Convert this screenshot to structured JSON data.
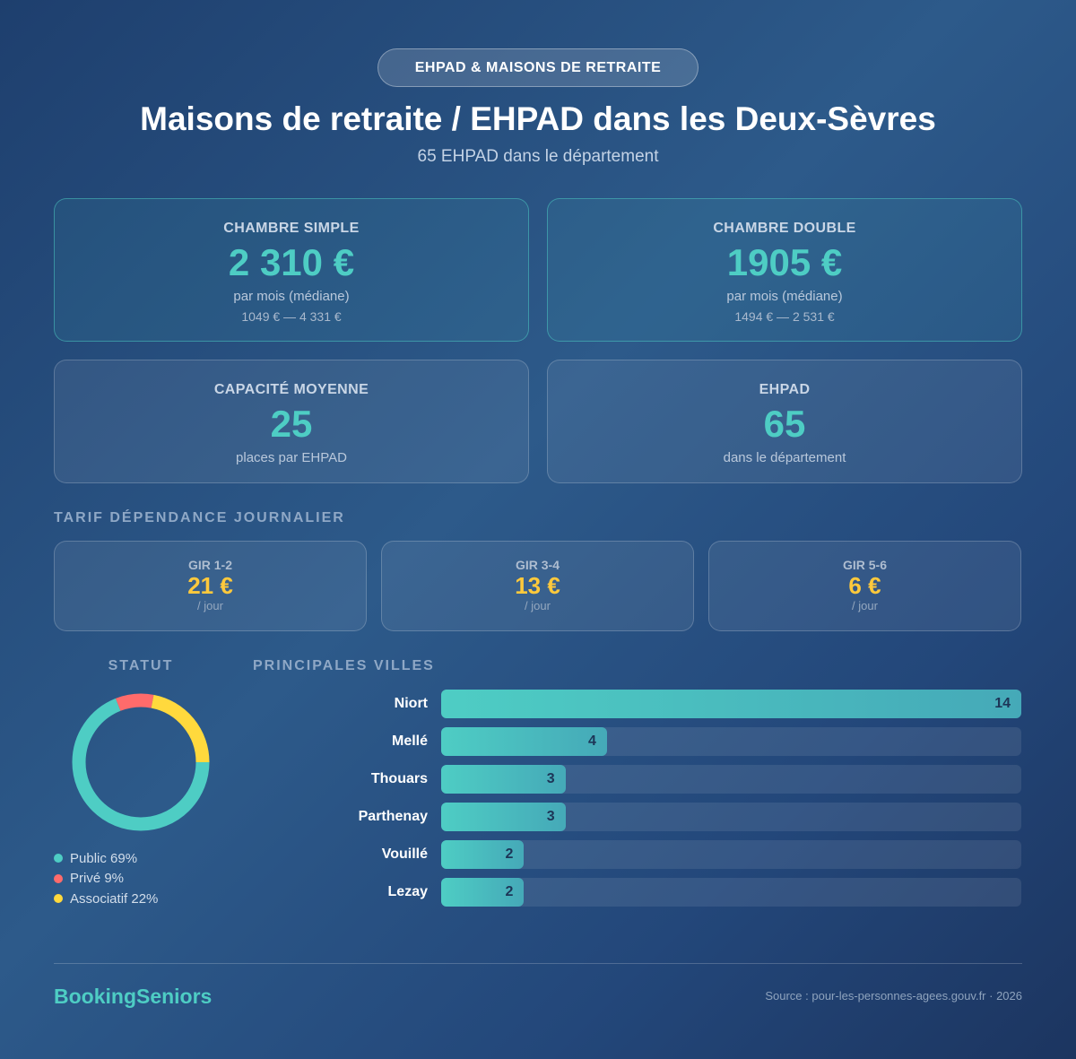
{
  "badge": "EHPAD & MAISONS DE RETRAITE",
  "title": "Maisons de retraite / EHPAD dans les Deux-Sèvres",
  "subtitle": "65 EHPAD dans le département",
  "price_cards": [
    {
      "label": "CHAMBRE SIMPLE",
      "value": "2 310 €",
      "note": "par mois (médiane)",
      "range": "1049 € — 4 331 €"
    },
    {
      "label": "CHAMBRE DOUBLE",
      "value": "1905 €",
      "note": "par mois (médiane)",
      "range": "1494 € — 2 531 €"
    }
  ],
  "info_cards": [
    {
      "label": "CAPACITÉ MOYENNE",
      "value": "25",
      "note": "places par EHPAD"
    },
    {
      "label": "EHPAD",
      "value": "65",
      "note": "dans le département"
    }
  ],
  "tarif": {
    "title": "TARIF DÉPENDANCE JOURNALIER",
    "items": [
      {
        "label": "GIR 1-2",
        "value": "21 €",
        "unit": "/ jour"
      },
      {
        "label": "GIR 3-4",
        "value": "13 €",
        "unit": "/ jour"
      },
      {
        "label": "GIR 5-6",
        "value": "6 €",
        "unit": "/ jour"
      }
    ]
  },
  "statut": {
    "title": "STATUT",
    "slices": [
      {
        "label": "Public 69%",
        "value": 69,
        "color": "#4ecdc4"
      },
      {
        "label": "Privé 9%",
        "value": 9,
        "color": "#ff6b6b"
      },
      {
        "label": "Associatif 22%",
        "value": 22,
        "color": "#ffd93d"
      }
    ]
  },
  "villes": {
    "title": "PRINCIPALES VILLES",
    "categories": [
      "Niort",
      "Mellé",
      "Thouars",
      "Parthenay",
      "Vouillé",
      "Lezay"
    ],
    "values": [
      14,
      4,
      3,
      3,
      2,
      2
    ]
  },
  "footer": {
    "brand": "BookingSeniors",
    "source": "Source : pour-les-personnes-agees.gouv.fr · 2026"
  }
}
